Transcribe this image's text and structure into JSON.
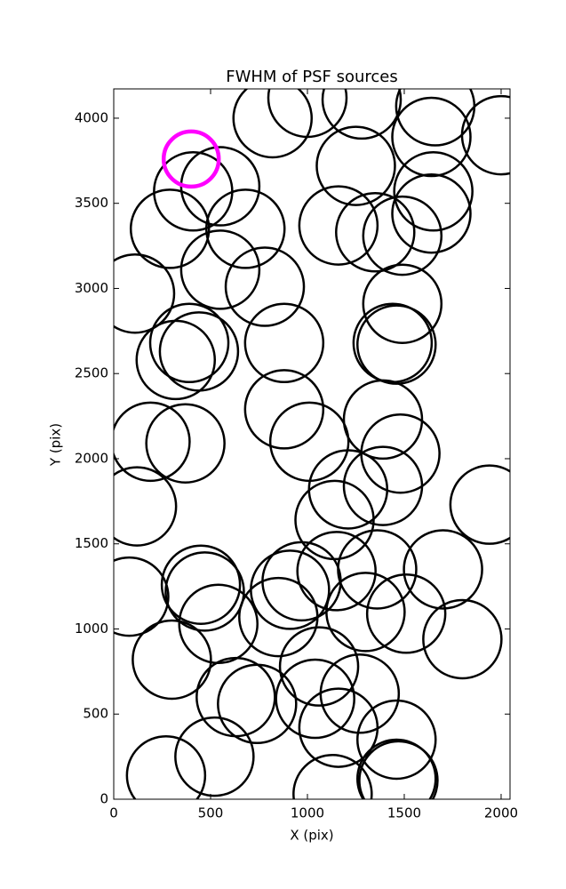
{
  "chart_data": {
    "type": "scatter",
    "title": "FWHM of PSF sources",
    "x_label": "X (pix)",
    "y_label": "Y (pix)",
    "xlim": [
      0,
      2046
    ],
    "ylim": [
      0,
      4172
    ],
    "xticks": [
      0,
      500,
      1000,
      1500,
      2000
    ],
    "yticks": [
      0,
      500,
      1000,
      1500,
      2000,
      2500,
      3000,
      3500,
      4000
    ],
    "marker": "open-circle",
    "series": [
      {
        "color": "#000000",
        "x": [
          820,
          1000,
          1280,
          1660,
          2000,
          1640,
          1250,
          1650,
          1640,
          1160,
          1350,
          1490,
          410,
          550,
          290,
          680,
          550,
          110,
          780,
          1490,
          390,
          440,
          320,
          880,
          1440,
          1460,
          880,
          1390,
          1010,
          1480,
          190,
          370,
          1210,
          1390,
          1140,
          1940,
          120,
          1700,
          1360,
          1150,
          910,
          970,
          450,
          470,
          80,
          540,
          850,
          1300,
          1510,
          1800,
          300,
          1060,
          630,
          740,
          1040,
          1270,
          1160,
          1460,
          520,
          270,
          1130,
          1460,
          1470
        ],
        "values": [
          4000,
          4120,
          4110,
          4070,
          3900,
          3890,
          3720,
          3570,
          3440,
          3370,
          3330,
          3310,
          3570,
          3600,
          3350,
          3350,
          3110,
          2970,
          3010,
          2910,
          2680,
          2630,
          2580,
          2680,
          2680,
          2670,
          2290,
          2230,
          2100,
          2030,
          2100,
          2090,
          1820,
          1840,
          1640,
          1730,
          1720,
          1350,
          1350,
          1340,
          1230,
          1280,
          1260,
          1220,
          1190,
          1030,
          1070,
          1100,
          1090,
          940,
          820,
          780,
          600,
          560,
          590,
          620,
          420,
          350,
          250,
          140,
          30,
          120,
          110
        ]
      },
      {
        "color": "#ff00ff",
        "x": [
          400
        ],
        "values": [
          3760
        ]
      }
    ]
  }
}
